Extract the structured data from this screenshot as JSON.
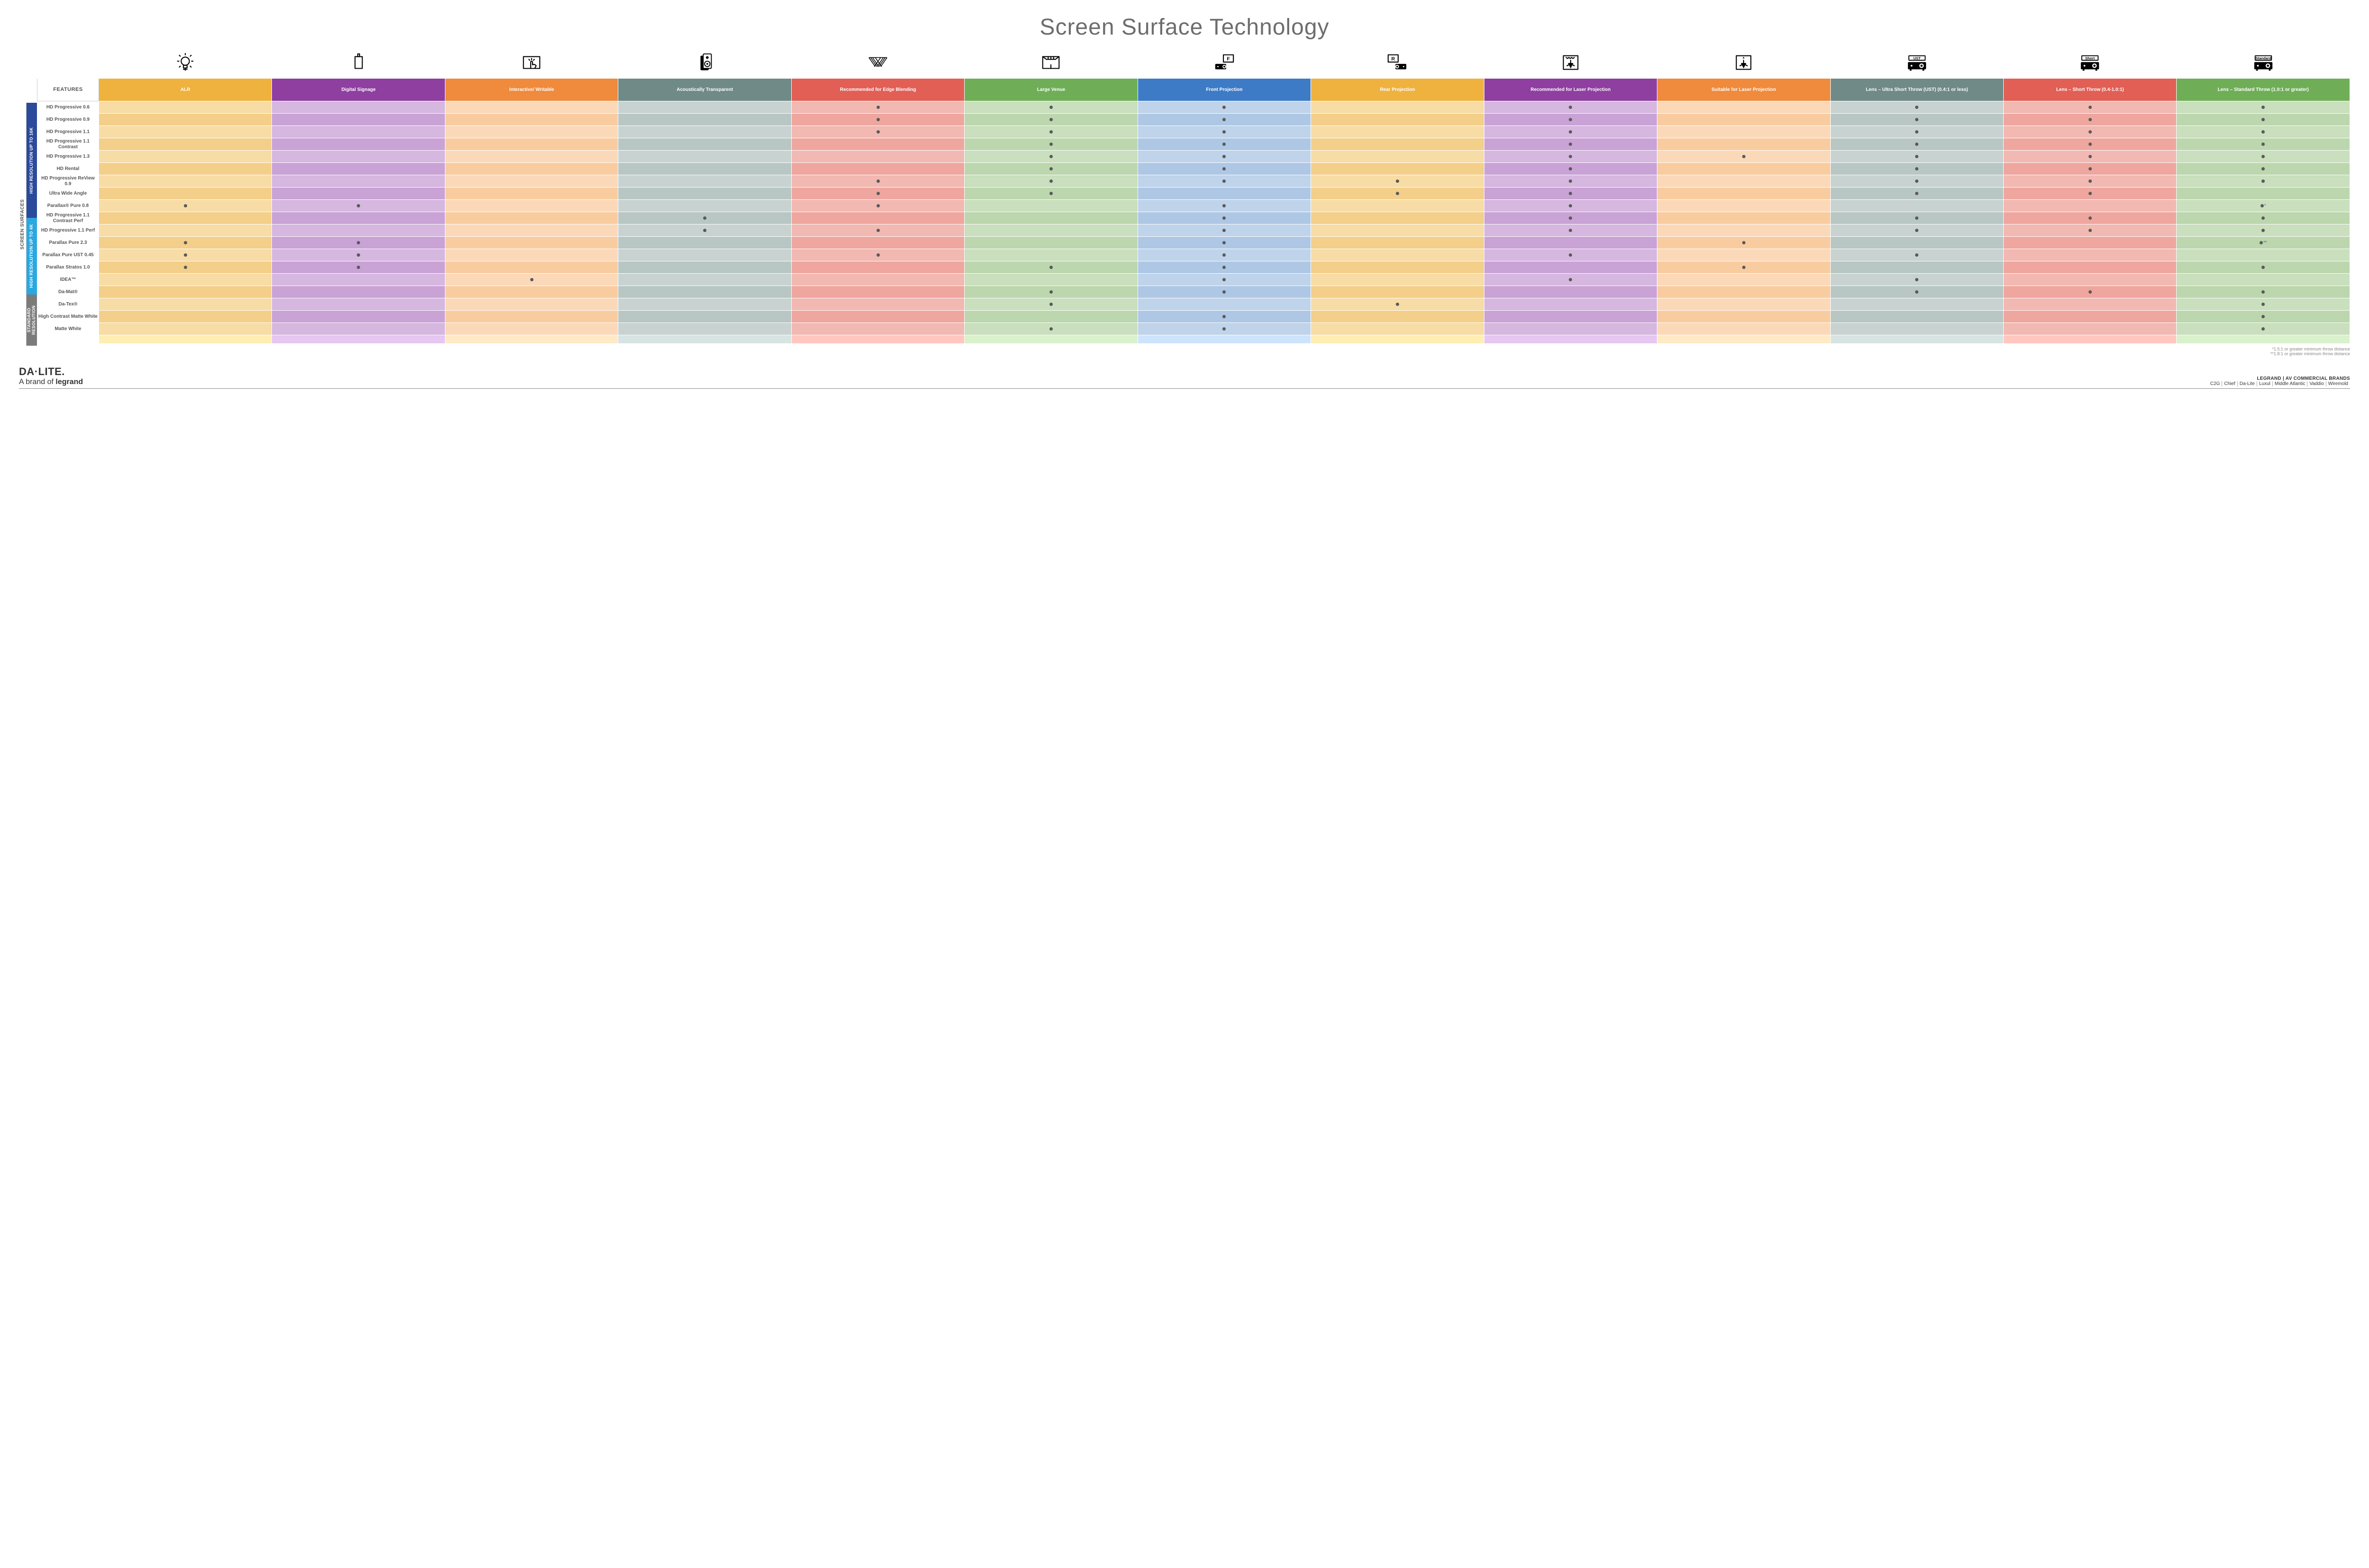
{
  "title": "Screen Surface Technology",
  "side_label": "SCREEN SURFACES",
  "groups": [
    {
      "label": "HIGH RESOLUTION UP TO 16K",
      "bg": "#2b4a9b",
      "rows": 9
    },
    {
      "label": "HIGH RESOLUTION UP TO 4K",
      "bg": "#2aa8e0",
      "rows": 6
    },
    {
      "label": "STANDARD RESOLUTION",
      "bg": "#7b7b7b",
      "rows": 4
    }
  ],
  "columns": [
    {
      "key": "alr",
      "label": "ALR",
      "icon": "bulb",
      "hdr_bg": "#efb23e",
      "tones": [
        "#f7dca6",
        "#f3cf8a"
      ]
    },
    {
      "key": "signage",
      "label": "Digital Signage",
      "icon": "signage",
      "hdr_bg": "#8e3fa0",
      "tones": [
        "#d6b7df",
        "#c9a2d6"
      ]
    },
    {
      "key": "interactive",
      "label": "Interactive/ Writable",
      "icon": "touch",
      "hdr_bg": "#f08a3c",
      "tones": [
        "#fbd9b8",
        "#f9cca0"
      ]
    },
    {
      "key": "acoustic",
      "label": "Acoustically Transparent",
      "icon": "speaker",
      "hdr_bg": "#6f8a87",
      "tones": [
        "#c8d3d1",
        "#b8c6c4"
      ]
    },
    {
      "key": "edge",
      "label": "Recommended for Edge Blending",
      "icon": "edge",
      "hdr_bg": "#e15f55",
      "tones": [
        "#f2b8b2",
        "#eea69f"
      ]
    },
    {
      "key": "venue",
      "label": "Large Venue",
      "icon": "venue",
      "hdr_bg": "#6fae57",
      "tones": [
        "#c9dfbd",
        "#bcd6ae"
      ]
    },
    {
      "key": "front",
      "label": "Front Projection",
      "icon": "front",
      "hdr_bg": "#3d7bc6",
      "tones": [
        "#bfd3ea",
        "#aec7e4"
      ]
    },
    {
      "key": "rear",
      "label": "Rear Projection",
      "icon": "rear",
      "hdr_bg": "#efb23e",
      "tones": [
        "#f7dca6",
        "#f3cf8a"
      ]
    },
    {
      "key": "rec_laser",
      "label": "Recommended for Laser Projection",
      "icon": "reclaser",
      "hdr_bg": "#8e3fa0",
      "tones": [
        "#d6b7df",
        "#c9a2d6"
      ]
    },
    {
      "key": "suit_laser",
      "label": "Suitable for Laser Projection",
      "icon": "suitlaser",
      "hdr_bg": "#f08a3c",
      "tones": [
        "#fbd9b8",
        "#f9cca0"
      ]
    },
    {
      "key": "ust",
      "label": "Lens – Ultra Short Throw (UST) (0.4:1 or less)",
      "icon": "proj_ust",
      "hdr_bg": "#6f8a87",
      "tones": [
        "#c8d3d1",
        "#b8c6c4"
      ]
    },
    {
      "key": "short",
      "label": "Lens – Short Throw (0.4-1.0:1)",
      "icon": "proj_short",
      "hdr_bg": "#e15f55",
      "tones": [
        "#f2b8b2",
        "#eea69f"
      ]
    },
    {
      "key": "std",
      "label": "Lens – Standard Throw (1.0:1 or greater)",
      "icon": "proj_std",
      "hdr_bg": "#6fae57",
      "tones": [
        "#c9dfbd",
        "#bcd6ae"
      ]
    }
  ],
  "features_header": "FEATURES",
  "rows": [
    {
      "label": "HD Progressive 0.6",
      "dots": {
        "edge": 1,
        "venue": 1,
        "front": 1,
        "rec_laser": 1,
        "ust": 1,
        "short": 1,
        "std": 1
      }
    },
    {
      "label": "HD Progressive 0.9",
      "dots": {
        "edge": 1,
        "venue": 1,
        "front": 1,
        "rec_laser": 1,
        "ust": 1,
        "short": 1,
        "std": 1
      }
    },
    {
      "label": "HD Progressive 1.1",
      "dots": {
        "edge": 1,
        "venue": 1,
        "front": 1,
        "rec_laser": 1,
        "ust": 1,
        "short": 1,
        "std": 1
      }
    },
    {
      "label": "HD Progressive 1.1 Contrast",
      "dots": {
        "venue": 1,
        "front": 1,
        "rec_laser": 1,
        "ust": 1,
        "short": 1,
        "std": 1
      }
    },
    {
      "label": "HD Progressive 1.3",
      "dots": {
        "venue": 1,
        "front": 1,
        "rec_laser": 1,
        "suit_laser": 1,
        "ust": 1,
        "short": 1,
        "std": 1
      }
    },
    {
      "label": "HD Rental",
      "dots": {
        "venue": 1,
        "front": 1,
        "rec_laser": 1,
        "ust": 1,
        "short": 1,
        "std": 1
      }
    },
    {
      "label": "HD Progressive ReView 0.9",
      "dots": {
        "edge": 1,
        "venue": 1,
        "front": 1,
        "rear": 1,
        "rec_laser": 1,
        "ust": 1,
        "short": 1,
        "std": 1
      }
    },
    {
      "label": "Ultra Wide Angle",
      "dots": {
        "edge": 1,
        "venue": 1,
        "rear": 1,
        "rec_laser": 1,
        "ust": 1,
        "short": 1
      }
    },
    {
      "label": "Parallax® Pure 0.8",
      "dots": {
        "alr": 1,
        "signage": 1,
        "edge": 1,
        "front": 1,
        "rec_laser": 1,
        "std": "*"
      }
    },
    {
      "label": "HD Progressive 1.1 Contrast Perf",
      "dots": {
        "acoustic": 1,
        "front": 1,
        "rec_laser": 1,
        "ust": 1,
        "short": 1,
        "std": 1
      }
    },
    {
      "label": "HD Progressive 1.1 Perf",
      "dots": {
        "acoustic": 1,
        "edge": 1,
        "front": 1,
        "rec_laser": 1,
        "ust": 1,
        "short": 1,
        "std": 1
      }
    },
    {
      "label": "Parallax Pure 2.3",
      "dots": {
        "alr": 1,
        "signage": 1,
        "front": 1,
        "suit_laser": 1,
        "std": "**"
      }
    },
    {
      "label": "Parallax Pure UST 0.45",
      "dots": {
        "alr": 1,
        "signage": 1,
        "edge": 1,
        "front": 1,
        "rec_laser": 1,
        "ust": 1
      }
    },
    {
      "label": "Parallax Stratos 1.0",
      "dots": {
        "alr": 1,
        "signage": 1,
        "venue": 1,
        "front": 1,
        "suit_laser": 1,
        "std": 1
      }
    },
    {
      "label": "IDEA™",
      "dots": {
        "interactive": 1,
        "front": 1,
        "rec_laser": 1,
        "ust": 1
      }
    },
    {
      "label": "Da-Mat®",
      "dots": {
        "venue": 1,
        "front": 1,
        "ust": 1,
        "short": 1,
        "std": 1
      }
    },
    {
      "label": "Da-Tex®",
      "dots": {
        "venue": 1,
        "rear": 1,
        "std": 1
      }
    },
    {
      "label": "High Contrast Matte White",
      "dots": {
        "front": 1,
        "std": 1
      }
    },
    {
      "label": "Matte White",
      "dots": {
        "venue": 1,
        "front": 1,
        "std": 1
      }
    }
  ],
  "footnotes": [
    "*1.5:1 or greater minimum throw distance",
    "**1.8:1 or greater minimum throw distance"
  ],
  "footer": {
    "logo_main": "DA·LITE.",
    "logo_sub_prefix": "A brand of ",
    "logo_sub_brand": "legrand",
    "brands_title": "LEGRAND | AV COMMERCIAL BRANDS",
    "brands": [
      "C2G",
      "Chief",
      "Da-Lite",
      "Luxul",
      "Middle Atlantic",
      "Vaddio",
      "Wiremold"
    ]
  }
}
